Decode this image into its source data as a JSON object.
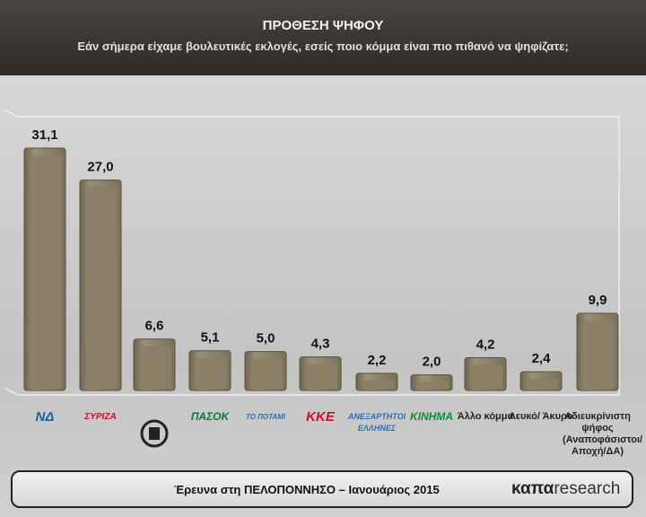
{
  "chart_data": {
    "type": "bar",
    "title": "ΠΡΟΘΕΣΗ ΨΗΦΟΥ",
    "subtitle": "Εάν σήμερα είχαμε βουλευτικές εκλογές, εσείς ποιο κόμμα είναι πιο πιθανό να ψηφίζατε;",
    "categories": [
      "ΝΔ",
      "ΣΥΡΙΖΑ",
      null,
      "ΠΑΣΟΚ",
      "ΤΟ ΠΟΤΑΜΙ",
      "ΚΚΕ",
      "ΑΝΕΞΑΡΤΗΤΟΙ ΕΛΛΗΝΕΣ",
      "ΚΙΝΗΜΑ",
      "Άλλο κόμμα",
      "Λευκό/ Άκυρο",
      "Αδιευκρίνιστη ψήφος (Αναποφάσιστοι/ Αποχή/ΔΑ)"
    ],
    "values": [
      31.1,
      27.0,
      6.6,
      5.1,
      5.0,
      4.3,
      2.2,
      2.0,
      4.2,
      2.4,
      9.9
    ],
    "value_labels": [
      "31,1",
      "27,0",
      "6,6",
      "5,1",
      "5,0",
      "4,3",
      "2,2",
      "2,0",
      "4,2",
      "2,4",
      "9,9"
    ],
    "color": "#8b7f66",
    "footer": "Έρευνα στη ΠΕΛΟΠΟΝΝΗΣΟ – Ιανουάριος 2015",
    "brand_bold": "καπα",
    "brand_light": "research"
  }
}
